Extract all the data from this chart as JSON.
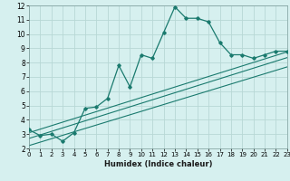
{
  "xlabel": "Humidex (Indice chaleur)",
  "bg_color": "#d6f0ef",
  "grid_color": "#b8d8d5",
  "line_color": "#1a7a6e",
  "spine_color": "#7a9a98",
  "xlim": [
    0,
    23
  ],
  "ylim": [
    2,
    12
  ],
  "xticks": [
    0,
    1,
    2,
    3,
    4,
    5,
    6,
    7,
    8,
    9,
    10,
    11,
    12,
    13,
    14,
    15,
    16,
    17,
    18,
    19,
    20,
    21,
    22,
    23
  ],
  "yticks": [
    2,
    3,
    4,
    5,
    6,
    7,
    8,
    9,
    10,
    11,
    12
  ],
  "main_x": [
    0,
    1,
    2,
    3,
    4,
    5,
    6,
    7,
    8,
    9,
    10,
    11,
    12,
    13,
    14,
    15,
    16,
    17,
    18,
    19,
    20,
    21,
    22,
    23
  ],
  "main_y": [
    3.3,
    2.9,
    3.0,
    2.5,
    3.1,
    4.8,
    4.9,
    5.5,
    7.8,
    6.3,
    8.55,
    8.3,
    10.1,
    11.9,
    11.1,
    11.1,
    10.85,
    9.4,
    8.55,
    8.55,
    8.3,
    8.55,
    8.8,
    8.8
  ],
  "line1_x": [
    0,
    23
  ],
  "line1_y": [
    3.1,
    8.75
  ],
  "line2_x": [
    0,
    23
  ],
  "line2_y": [
    2.7,
    8.35
  ],
  "line3_x": [
    0,
    23
  ],
  "line3_y": [
    2.2,
    7.7
  ]
}
